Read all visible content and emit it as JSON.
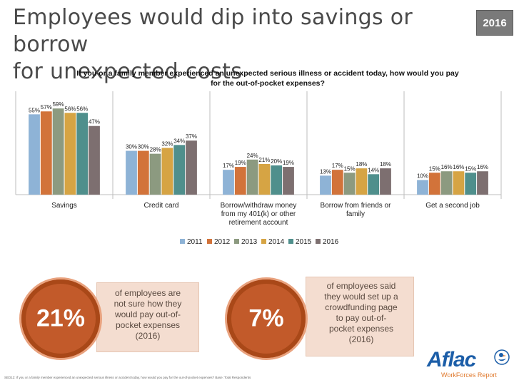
{
  "page": {
    "title_line1": "Employees would dip into savings or borrow",
    "title_line2": "for unexpected costs",
    "year_badge": "2016"
  },
  "chart_data": {
    "type": "bar",
    "title_line1": "If you or a family member experienced an unexpected serious illness or accident today, how would you pay",
    "title_line2": "for the out-of-pocket expenses?",
    "categories": [
      [
        "Savings"
      ],
      [
        "Credit card"
      ],
      [
        "Borrow/withdraw money",
        "from my 401(k) or other",
        "retirement account"
      ],
      [
        "Borrow from friends or",
        "family"
      ],
      [
        "Get a second job"
      ]
    ],
    "series": [
      {
        "name": "2011",
        "color": "#8eb3d6",
        "values": [
          55,
          30,
          17,
          13,
          10
        ]
      },
      {
        "name": "2012",
        "color": "#d2733a",
        "values": [
          57,
          30,
          19,
          17,
          15
        ]
      },
      {
        "name": "2013",
        "color": "#8c9a80",
        "values": [
          59,
          28,
          24,
          15,
          16
        ]
      },
      {
        "name": "2014",
        "color": "#d6a444",
        "values": [
          56,
          32,
          21,
          18,
          16
        ]
      },
      {
        "name": "2015",
        "color": "#4f8f8c",
        "values": [
          56,
          34,
          20,
          14,
          15
        ]
      },
      {
        "name": "2016",
        "color": "#7d6f70",
        "values": [
          47,
          37,
          19,
          18,
          16
        ]
      }
    ],
    "ylim": [
      0,
      62
    ],
    "legend_position": "bottom",
    "grid": false
  },
  "callouts": [
    {
      "value": "21%",
      "lines": [
        "of employees are",
        "not sure how they",
        "would pay out-of-",
        "pocket expenses",
        "(2016)"
      ]
    },
    {
      "value": "7%",
      "lines": [
        "of employees said",
        "they would set up a",
        "crowdfunding page",
        "to pay out-of-",
        "pocket expenses",
        "(2016)"
      ]
    }
  ],
  "footnote": "SED12: If you or a family member experienced an unexpected serious illness or accident today, how would you pay for the out-of-pocket expenses? Base: Total Respondents",
  "logo": {
    "name": "Aflac",
    "sub": "WorkForces Report"
  }
}
